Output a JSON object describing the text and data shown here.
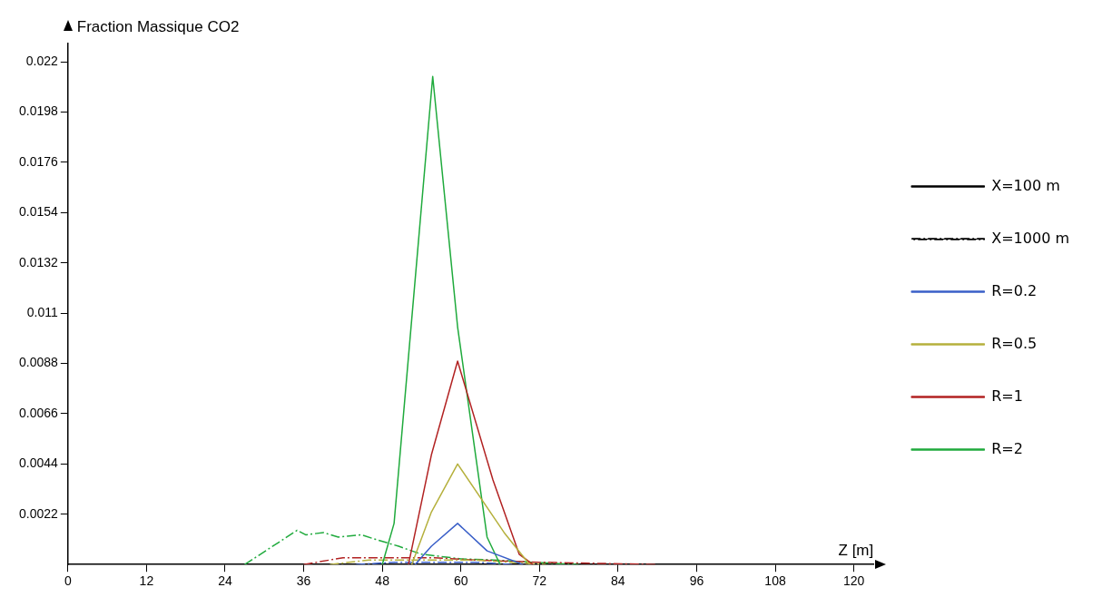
{
  "chart_data": {
    "type": "line",
    "xlabel": "Z [m]",
    "ylabel": "Fraction Massique CO2",
    "xlim": [
      0,
      123
    ],
    "xticks": [
      0,
      12,
      24,
      36,
      48,
      60,
      72,
      84,
      96,
      108,
      120
    ],
    "ylim": [
      0,
      0.0228
    ],
    "yticks": [
      0.0022,
      0.0044,
      0.0066,
      0.0088,
      0.011,
      0.0132,
      0.0154,
      0.0176,
      0.0198,
      0.022
    ],
    "grid": false,
    "legend": "right",
    "marker": "none",
    "series": [
      {
        "name": "X=100 m",
        "color": "#000000",
        "line_style": "solid"
      },
      {
        "name": "X=1000 m",
        "color": "#000000",
        "line_style": "dashed"
      },
      {
        "name": "R=0.2",
        "color": "#3a5fc8",
        "line_style": "solid",
        "x": [
          53,
          55.5,
          59.5,
          64,
          69.5
        ],
        "values": [
          0,
          0.0008,
          0.0018,
          0.0006,
          0
        ]
      },
      {
        "name": "R=0.5",
        "color": "#b5b03c",
        "line_style": "solid",
        "x": [
          52.5,
          55.5,
          59.5,
          66.6,
          70.5
        ],
        "values": [
          0,
          0.0023,
          0.0044,
          0.0014,
          0
        ]
      },
      {
        "name": "R=1",
        "color": "#b22222",
        "line_style": "solid",
        "x": [
          52,
          55.5,
          59.5,
          64.9,
          68.9,
          71
        ],
        "values": [
          0,
          0.0048,
          0.0089,
          0.0037,
          0.00045,
          0
        ]
      },
      {
        "name": "R=2",
        "color": "#1faa3c",
        "line_style": "solid",
        "x": [
          48,
          49.8,
          55.7,
          59.5,
          64,
          66
        ],
        "values": [
          0,
          0.0018,
          0.02136,
          0.0104,
          0.0012,
          0
        ]
      },
      {
        "color": "#3a5fc8",
        "line_style": "dashed",
        "x": [
          44,
          50,
          56,
          62,
          68
        ],
        "values": [
          0,
          0.0001,
          0.0001,
          0.0001,
          0
        ]
      },
      {
        "color": "#b5b03c",
        "line_style": "dashed",
        "x": [
          40,
          46,
          54,
          62,
          73
        ],
        "values": [
          0,
          0.0002,
          0.0002,
          0.0002,
          0
        ]
      },
      {
        "color": "#b22222",
        "line_style": "dashed",
        "x": [
          36,
          42,
          48,
          56,
          62,
          72,
          90
        ],
        "values": [
          0,
          0.0003,
          0.0003,
          0.0003,
          0.0002,
          0.0001,
          0
        ]
      },
      {
        "color": "#1faa3c",
        "line_style": "dashed",
        "x": [
          27,
          35,
          36.3,
          39,
          41.3,
          44.8,
          47,
          50.5,
          54,
          60,
          65,
          71,
          78
        ],
        "values": [
          0,
          0.0015,
          0.0013,
          0.0014,
          0.0012,
          0.0013,
          0.0011,
          0.0008,
          0.00045,
          0.00025,
          0.0002,
          0.0001,
          0
        ]
      }
    ]
  }
}
